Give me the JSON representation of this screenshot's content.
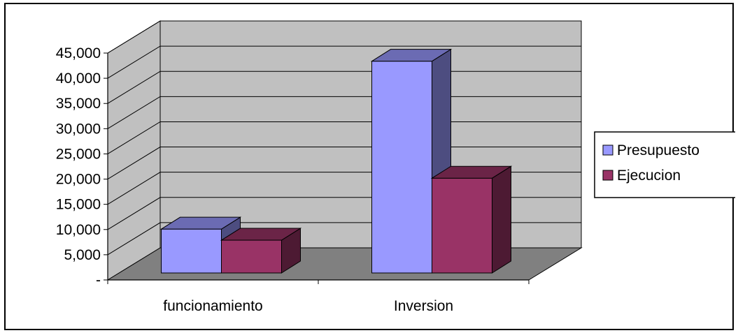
{
  "chart_data": {
    "type": "bar",
    "style": "3d-clustered-column",
    "categories": [
      "funcionamiento",
      "Inversion"
    ],
    "series": [
      {
        "name": "Presupuesto",
        "values": [
          8700,
          42000
        ],
        "color": "#9999ff"
      },
      {
        "name": "Ejecucion",
        "values": [
          6500,
          18800
        ],
        "color": "#993366"
      }
    ],
    "ylim": [
      0,
      45000
    ],
    "y_ticks": [
      {
        "value": 0,
        "label": "-"
      },
      {
        "value": 5000,
        "label": "5,000"
      },
      {
        "value": 10000,
        "label": "10,000"
      },
      {
        "value": 15000,
        "label": "15,000"
      },
      {
        "value": 20000,
        "label": "20,000"
      },
      {
        "value": 25000,
        "label": "25,000"
      },
      {
        "value": 30000,
        "label": "30,000"
      },
      {
        "value": 35000,
        "label": "35,000"
      },
      {
        "value": 40000,
        "label": "40,000"
      },
      {
        "value": 45000,
        "label": "45,000"
      }
    ],
    "grid": true,
    "legend_position": "right",
    "wall_color": "#c0c0c0",
    "floor_color": "#808080"
  }
}
